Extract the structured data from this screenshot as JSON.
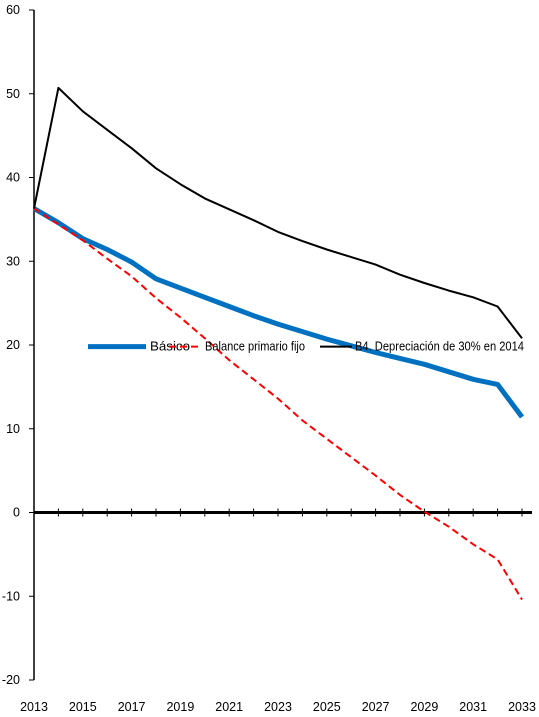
{
  "chart_data": {
    "type": "line",
    "x": [
      2013,
      2014,
      2015,
      2016,
      2017,
      2018,
      2019,
      2020,
      2021,
      2022,
      2023,
      2024,
      2025,
      2026,
      2027,
      2028,
      2029,
      2030,
      2031,
      2032,
      2033
    ],
    "x_tick_labels": [
      "2013",
      "2015",
      "2017",
      "2019",
      "2021",
      "2023",
      "2025",
      "2027",
      "2029",
      "2031",
      "2033"
    ],
    "y_tick_labels": [
      "60",
      "50",
      "40",
      "30",
      "20",
      "10",
      "0",
      "-10",
      "-20"
    ],
    "ylim": [
      -20,
      60
    ],
    "xlim": [
      2013,
      2033
    ],
    "legend_position": "middle",
    "series": [
      {
        "name": "Básico",
        "color": "#0070C0",
        "dash": "solid",
        "values": [
          36.3,
          34.6,
          32.7,
          31.4,
          29.9,
          27.9,
          26.8,
          25.7,
          24.6,
          23.5,
          22.5,
          21.6,
          20.7,
          19.9,
          19.1,
          18.4,
          17.7,
          16.8,
          15.9,
          15.3,
          11.4
        ]
      },
      {
        "name": "Balance primario fijo",
        "color": "#FF0000",
        "dash": "dashed",
        "values": [
          36.3,
          34.4,
          32.5,
          30.3,
          28.2,
          25.6,
          23.3,
          20.8,
          18.2,
          15.9,
          13.6,
          11.0,
          8.8,
          6.6,
          4.4,
          2.1,
          0.1,
          -1.7,
          -3.8,
          -5.6,
          -10.4
        ]
      },
      {
        "name": "B4. Depreciación de 30% en 2014",
        "color": "#000000",
        "dash": "solid",
        "values": [
          36.3,
          50.7,
          47.9,
          45.7,
          43.5,
          41.1,
          39.2,
          37.5,
          36.2,
          34.9,
          33.5,
          32.4,
          31.4,
          30.5,
          29.6,
          28.4,
          27.4,
          26.5,
          25.7,
          24.6,
          20.8
        ]
      }
    ]
  }
}
